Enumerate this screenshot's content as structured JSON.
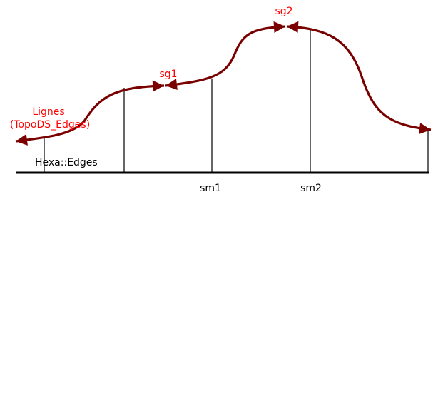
{
  "labels": {
    "lignes_line1": "Lignes",
    "lignes_line2": "(TopoDS_Edges)",
    "hexa_edges": "Hexa::Edges",
    "sg1": "sg1",
    "sg2": "sg2",
    "sm1": "sm1",
    "sm2": "sm2"
  },
  "colors": {
    "curve": "#7a0000",
    "label_red": "#ff0000",
    "baseline": "#000000"
  }
}
